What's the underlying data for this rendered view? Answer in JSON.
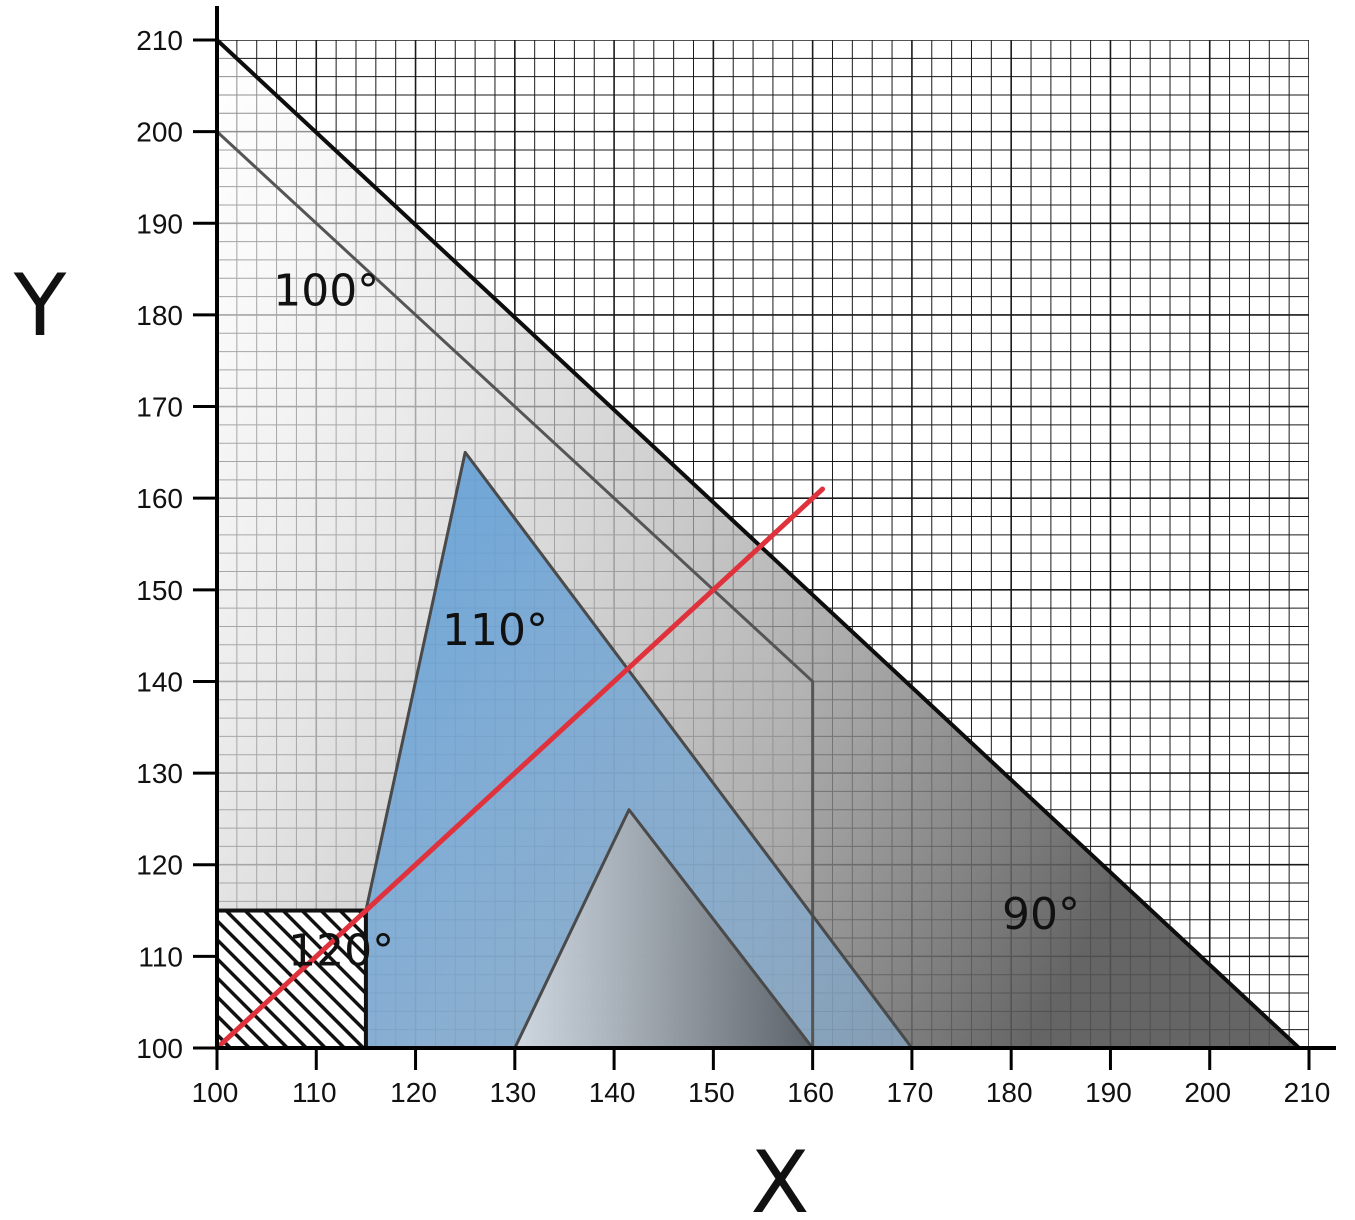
{
  "chart_data": {
    "type": "area",
    "xlabel": "X",
    "ylabel": "Y",
    "xlim": [
      100,
      210
    ],
    "ylim": [
      100,
      210
    ],
    "x_ticks": [
      100,
      110,
      120,
      130,
      140,
      150,
      160,
      170,
      180,
      190,
      200,
      210
    ],
    "y_ticks": [
      100,
      110,
      120,
      130,
      140,
      150,
      160,
      170,
      180,
      190,
      200,
      210
    ],
    "grid": true,
    "regions": [
      {
        "label": "90°",
        "points": [
          [
            100,
            210
          ],
          [
            209,
            100
          ],
          [
            100,
            100
          ]
        ],
        "color": "#6a6a6a"
      },
      {
        "label": "100°",
        "points": [
          [
            100,
            200
          ],
          [
            160,
            140
          ],
          [
            160,
            100
          ],
          [
            100,
            100
          ]
        ],
        "color": "#9a9a9a"
      },
      {
        "label": "110°",
        "points": [
          [
            115,
            115
          ],
          [
            125,
            165
          ],
          [
            170,
            100
          ],
          [
            115,
            100
          ]
        ],
        "color": "#5b9bd5"
      },
      {
        "label": "120°",
        "points": [
          [
            130,
            100
          ],
          [
            141.5,
            126
          ],
          [
            160,
            100
          ]
        ],
        "color": "#8a8a8a"
      }
    ],
    "hatched_region": {
      "x": [
        100,
        115
      ],
      "y": [
        100,
        115
      ]
    },
    "line": {
      "points": [
        [
          100,
          100
        ],
        [
          161,
          161
        ]
      ],
      "color": "#e0323c"
    },
    "label_positions": {
      "100°": [
        111,
        181
      ],
      "110°": [
        128,
        144
      ],
      "120°": [
        112.5,
        109
      ],
      "90°": [
        183,
        113
      ]
    }
  }
}
